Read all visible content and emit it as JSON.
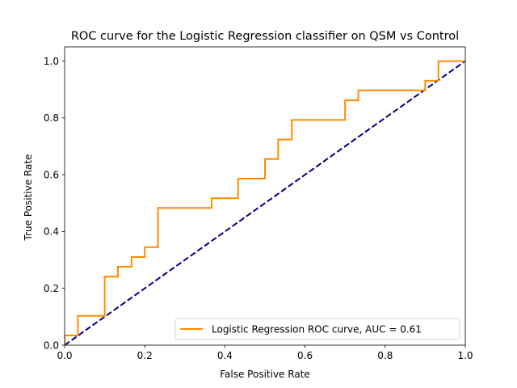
{
  "chart_data": {
    "type": "line",
    "title": "ROC curve for the Logistic Regression classifier on QSM vs Control",
    "xlabel": "False Positive Rate",
    "ylabel": "True Positive Rate",
    "xlim": [
      0.0,
      1.0
    ],
    "ylim": [
      0.0,
      1.05
    ],
    "xticks": [
      0.0,
      0.2,
      0.4,
      0.6,
      0.8,
      1.0
    ],
    "xtick_labels": [
      "0.0",
      "0.2",
      "0.4",
      "0.6",
      "0.8",
      "1.0"
    ],
    "yticks": [
      0.0,
      0.2,
      0.4,
      0.6,
      0.8,
      1.0
    ],
    "ytick_labels": [
      "0.0",
      "0.2",
      "0.4",
      "0.6",
      "0.8",
      "1.0"
    ],
    "grid": false,
    "legend_position": "lower-right",
    "series": [
      {
        "name": "Logistic Regression ROC curve, AUC = 0.61",
        "color": "#ff8c00",
        "style": "solid",
        "x": [
          0.0,
          0.0,
          0.033,
          0.033,
          0.1,
          0.1,
          0.133,
          0.133,
          0.167,
          0.167,
          0.2,
          0.2,
          0.233,
          0.233,
          0.367,
          0.367,
          0.433,
          0.433,
          0.5,
          0.5,
          0.533,
          0.533,
          0.567,
          0.567,
          0.7,
          0.7,
          0.733,
          0.733,
          0.9,
          0.9,
          0.933,
          0.933,
          1.0
        ],
        "y": [
          0.0,
          0.034,
          0.034,
          0.103,
          0.103,
          0.241,
          0.241,
          0.276,
          0.276,
          0.31,
          0.31,
          0.345,
          0.345,
          0.483,
          0.483,
          0.517,
          0.517,
          0.586,
          0.586,
          0.655,
          0.655,
          0.724,
          0.724,
          0.793,
          0.793,
          0.862,
          0.862,
          0.897,
          0.897,
          0.931,
          0.931,
          1.0,
          1.0
        ]
      },
      {
        "color": "#000080",
        "style": "dashed",
        "x": [
          0.0,
          1.0
        ],
        "y": [
          0.0,
          1.0
        ]
      }
    ]
  }
}
